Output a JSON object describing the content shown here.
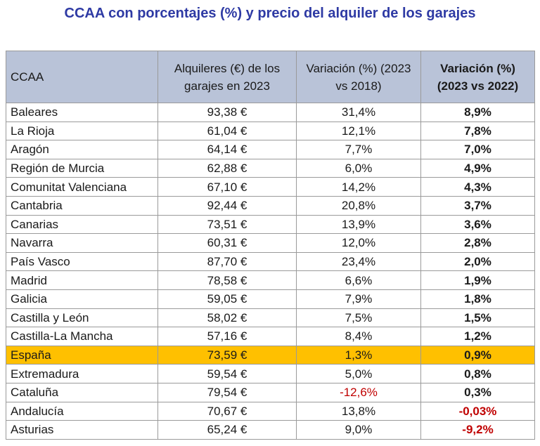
{
  "title": "CCAA con porcentajes (%) y precio del alquiler de los garajes",
  "header": {
    "ccaa": "CCAA",
    "rent": "Alquileres (€) de los garajes en 2023",
    "var_2018": "Variación (%) (2023 vs 2018)",
    "var_2022": "Variación (%) (2023 vs 2022)"
  },
  "rows": [
    {
      "ccaa": "Baleares",
      "rent": "93,38 €",
      "var_2018": "31,4%",
      "var_2022": "8,9%"
    },
    {
      "ccaa": "La Rioja",
      "rent": "61,04 €",
      "var_2018": "12,1%",
      "var_2022": "7,8%"
    },
    {
      "ccaa": "Aragón",
      "rent": "64,14 €",
      "var_2018": "7,7%",
      "var_2022": "7,0%"
    },
    {
      "ccaa": "Región de Murcia",
      "rent": "62,88 €",
      "var_2018": "6,0%",
      "var_2022": "4,9%"
    },
    {
      "ccaa": "Comunitat Valenciana",
      "rent": "67,10 €",
      "var_2018": "14,2%",
      "var_2022": "4,3%"
    },
    {
      "ccaa": "Cantabria",
      "rent": "92,44 €",
      "var_2018": "20,8%",
      "var_2022": "3,7%"
    },
    {
      "ccaa": "Canarias",
      "rent": "73,51 €",
      "var_2018": "13,9%",
      "var_2022": "3,6%"
    },
    {
      "ccaa": "Navarra",
      "rent": "60,31 €",
      "var_2018": "12,0%",
      "var_2022": "2,8%"
    },
    {
      "ccaa": "País Vasco",
      "rent": "87,70 €",
      "var_2018": "23,4%",
      "var_2022": "2,0%"
    },
    {
      "ccaa": "Madrid",
      "rent": "78,58 €",
      "var_2018": "6,6%",
      "var_2022": "1,9%"
    },
    {
      "ccaa": "Galicia",
      "rent": "59,05 €",
      "var_2018": "7,9%",
      "var_2022": "1,8%"
    },
    {
      "ccaa": "Castilla y León",
      "rent": "58,02 €",
      "var_2018": "7,5%",
      "var_2022": "1,5%"
    },
    {
      "ccaa": "Castilla-La Mancha",
      "rent": "57,16 €",
      "var_2018": "8,4%",
      "var_2022": "1,2%"
    },
    {
      "ccaa": "España",
      "rent": "73,59 €",
      "var_2018": "1,3%",
      "var_2022": "0,9%"
    },
    {
      "ccaa": "Extremadura",
      "rent": "59,54 €",
      "var_2018": "5,0%",
      "var_2022": "0,8%"
    },
    {
      "ccaa": "Cataluña",
      "rent": "79,54 €",
      "var_2018": "-12,6%",
      "var_2022": "0,3%"
    },
    {
      "ccaa": "Andalucía",
      "rent": "70,67 €",
      "var_2018": "13,8%",
      "var_2022": "-0,03%"
    },
    {
      "ccaa": "Asturias",
      "rent": "65,24 €",
      "var_2018": "9,0%",
      "var_2022": "-9,2%"
    }
  ],
  "highlight_row": "España",
  "colors": {
    "title": "#2e3aa4",
    "header_bg": "#b9c3d8",
    "highlight_bg": "#ffc000",
    "negative": "#c00000",
    "border": "#9a9a9a"
  }
}
